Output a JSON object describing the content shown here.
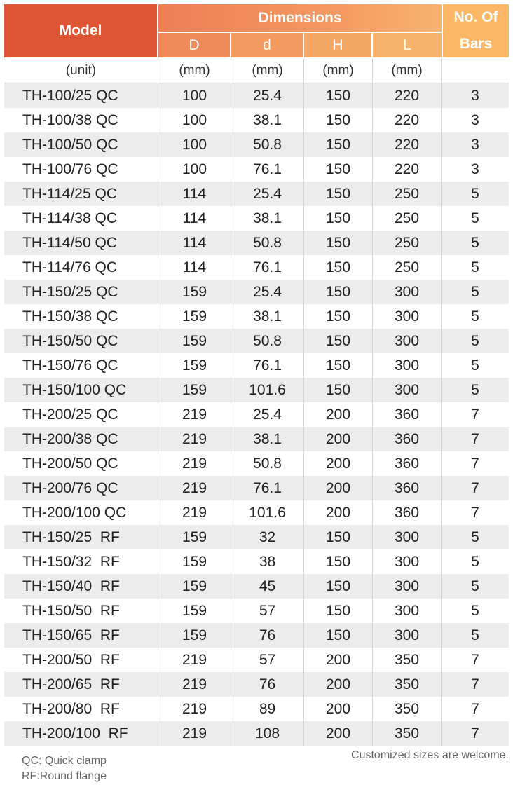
{
  "header": {
    "model": "Model",
    "dimensions": "Dimensions",
    "bars_line1": "No. Of",
    "bars_line2": "Bars",
    "sub": [
      "D",
      "d",
      "H",
      "L"
    ]
  },
  "units": [
    "(unit)",
    "(mm)",
    "(mm)",
    "(mm)",
    "(mm)"
  ],
  "rows": [
    [
      "TH-100/25 QC",
      "100",
      "25.4",
      "150",
      "220",
      "3"
    ],
    [
      "TH-100/38 QC",
      "100",
      "38.1",
      "150",
      "220",
      "3"
    ],
    [
      "TH-100/50 QC",
      "100",
      "50.8",
      "150",
      "220",
      "3"
    ],
    [
      "TH-100/76 QC",
      "100",
      "76.1",
      "150",
      "220",
      "3"
    ],
    [
      "TH-114/25 QC",
      "114",
      "25.4",
      "150",
      "250",
      "5"
    ],
    [
      "TH-114/38 QC",
      "114",
      "38.1",
      "150",
      "250",
      "5"
    ],
    [
      "TH-114/50 QC",
      "114",
      "50.8",
      "150",
      "250",
      "5"
    ],
    [
      "TH-114/76 QC",
      "114",
      "76.1",
      "150",
      "250",
      "5"
    ],
    [
      "TH-150/25 QC",
      "159",
      "25.4",
      "150",
      "300",
      "5"
    ],
    [
      "TH-150/38 QC",
      "159",
      "38.1",
      "150",
      "300",
      "5"
    ],
    [
      "TH-150/50 QC",
      "159",
      "50.8",
      "150",
      "300",
      "5"
    ],
    [
      "TH-150/76 QC",
      "159",
      "76.1",
      "150",
      "300",
      "5"
    ],
    [
      "TH-150/100 QC",
      "159",
      "101.6",
      "150",
      "300",
      "5"
    ],
    [
      "TH-200/25 QC",
      "219",
      "25.4",
      "200",
      "360",
      "7"
    ],
    [
      "TH-200/38 QC",
      "219",
      "38.1",
      "200",
      "360",
      "7"
    ],
    [
      "TH-200/50 QC",
      "219",
      "50.8",
      "200",
      "360",
      "7"
    ],
    [
      "TH-200/76 QC",
      "219",
      "76.1",
      "200",
      "360",
      "7"
    ],
    [
      "TH-200/100 QC",
      "219",
      "101.6",
      "200",
      "360",
      "7"
    ],
    [
      "TH-150/25  RF",
      "159",
      "32",
      "150",
      "300",
      "5"
    ],
    [
      "TH-150/32  RF",
      "159",
      "38",
      "150",
      "300",
      "5"
    ],
    [
      "TH-150/40  RF",
      "159",
      "45",
      "150",
      "300",
      "5"
    ],
    [
      "TH-150/50  RF",
      "159",
      "57",
      "150",
      "300",
      "5"
    ],
    [
      "TH-150/65  RF",
      "159",
      "76",
      "150",
      "300",
      "5"
    ],
    [
      "TH-200/50  RF",
      "219",
      "57",
      "200",
      "350",
      "7"
    ],
    [
      "TH-200/65  RF",
      "219",
      "76",
      "200",
      "350",
      "7"
    ],
    [
      "TH-200/80  RF",
      "219",
      "89",
      "200",
      "350",
      "7"
    ],
    [
      "TH-200/100  RF",
      "219",
      "108",
      "200",
      "350",
      "7"
    ]
  ],
  "notes": {
    "qc": "QC: Quick clamp",
    "rf": "RF:Round flange",
    "custom": "Customized sizes are welcome."
  },
  "colors": {
    "model_header": "#dd5533",
    "dimensions_start": "#ef7e55",
    "dimensions_end": "#f8b36f",
    "bars_header": "#fbb765",
    "stripe": "#ececec"
  }
}
